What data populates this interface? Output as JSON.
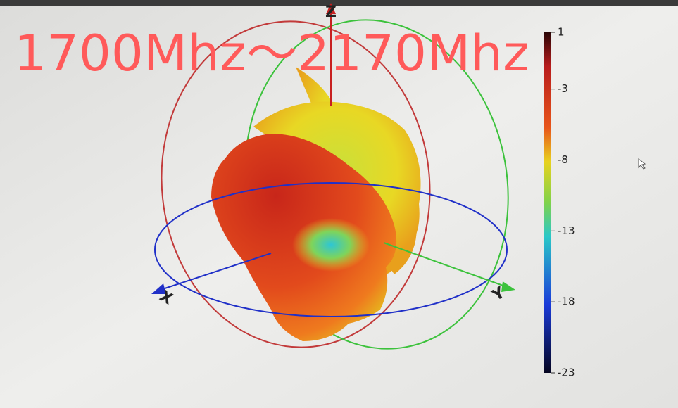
{
  "title": "1700Mhz～2170Mhz",
  "axes": {
    "x": "X",
    "y": "Y",
    "z": "Z"
  },
  "colorbar": {
    "range": [
      -23,
      1
    ],
    "ticks": [
      1,
      -3,
      -8,
      -13,
      -18,
      -23
    ]
  }
}
